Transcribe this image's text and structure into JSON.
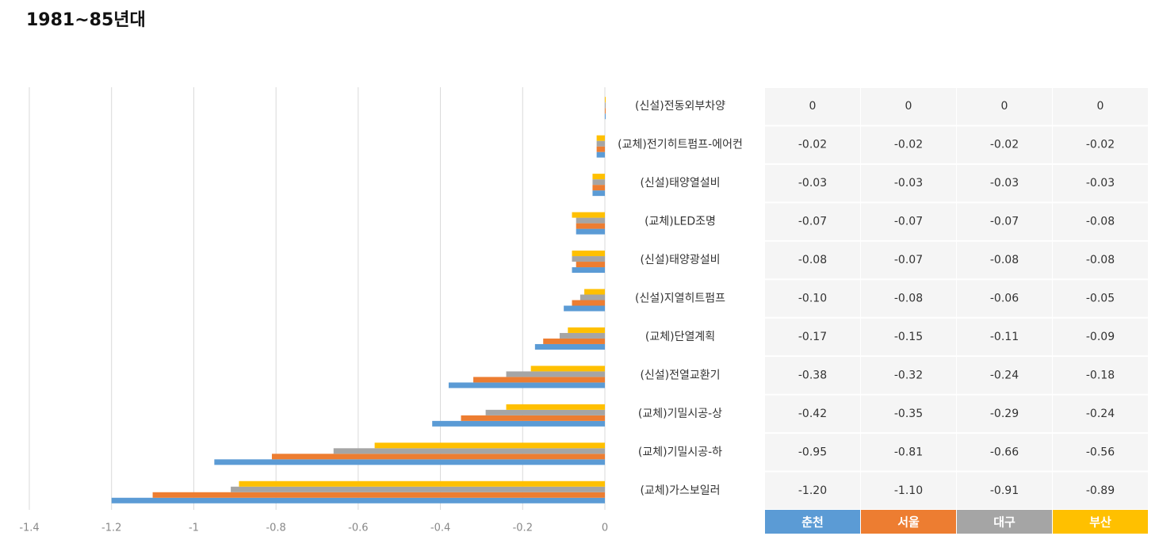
{
  "chart_data": {
    "type": "bar",
    "orientation": "horizontal",
    "title": "1981~85년대",
    "categories": [
      "(신설)전동외부차양",
      "(교체)전기히트펌프-에어컨",
      "(신설)태양열설비",
      "(교체)LED조명",
      "(신설)태양광설비",
      "(신설)지열히트펌프",
      "(교체)단열계획",
      "(신설)전열교환기",
      "(교체)기밀시공-상",
      "(교체)기밀시공-하",
      "(교체)가스보일러"
    ],
    "series": [
      {
        "name": "춘천",
        "color": "#5b9bd5",
        "values": [
          0,
          -0.02,
          -0.03,
          -0.07,
          -0.08,
          -0.1,
          -0.17,
          -0.38,
          -0.42,
          -0.95,
          -1.2
        ],
        "value_labels": [
          "0",
          "-0.02",
          "-0.03",
          "-0.07",
          "-0.08",
          "-0.10",
          "-0.17",
          "-0.38",
          "-0.42",
          "-0.95",
          "-1.20"
        ]
      },
      {
        "name": "서울",
        "color": "#ed7d31",
        "values": [
          0,
          -0.02,
          -0.03,
          -0.07,
          -0.07,
          -0.08,
          -0.15,
          -0.32,
          -0.35,
          -0.81,
          -1.1
        ],
        "value_labels": [
          "0",
          "-0.02",
          "-0.03",
          "-0.07",
          "-0.07",
          "-0.08",
          "-0.15",
          "-0.32",
          "-0.35",
          "-0.81",
          "-1.10"
        ]
      },
      {
        "name": "대구",
        "color": "#a5a5a5",
        "values": [
          0,
          -0.02,
          -0.03,
          -0.07,
          -0.08,
          -0.06,
          -0.11,
          -0.24,
          -0.29,
          -0.66,
          -0.91
        ],
        "value_labels": [
          "0",
          "-0.02",
          "-0.03",
          "-0.07",
          "-0.08",
          "-0.06",
          "-0.11",
          "-0.24",
          "-0.29",
          "-0.66",
          "-0.91"
        ]
      },
      {
        "name": "부산",
        "color": "#ffc000",
        "values": [
          0,
          -0.02,
          -0.03,
          -0.08,
          -0.08,
          -0.05,
          -0.09,
          -0.18,
          -0.24,
          -0.56,
          -0.89
        ],
        "value_labels": [
          "0",
          "-0.02",
          "-0.03",
          "-0.08",
          "-0.08",
          "-0.05",
          "-0.09",
          "-0.18",
          "-0.24",
          "-0.56",
          "-0.89"
        ]
      }
    ],
    "xlim": [
      -1.4,
      0
    ],
    "xticks": [
      -1.4,
      -1.2,
      -1,
      -0.8,
      -0.6,
      -0.4,
      -0.2,
      0
    ],
    "grid": true
  }
}
